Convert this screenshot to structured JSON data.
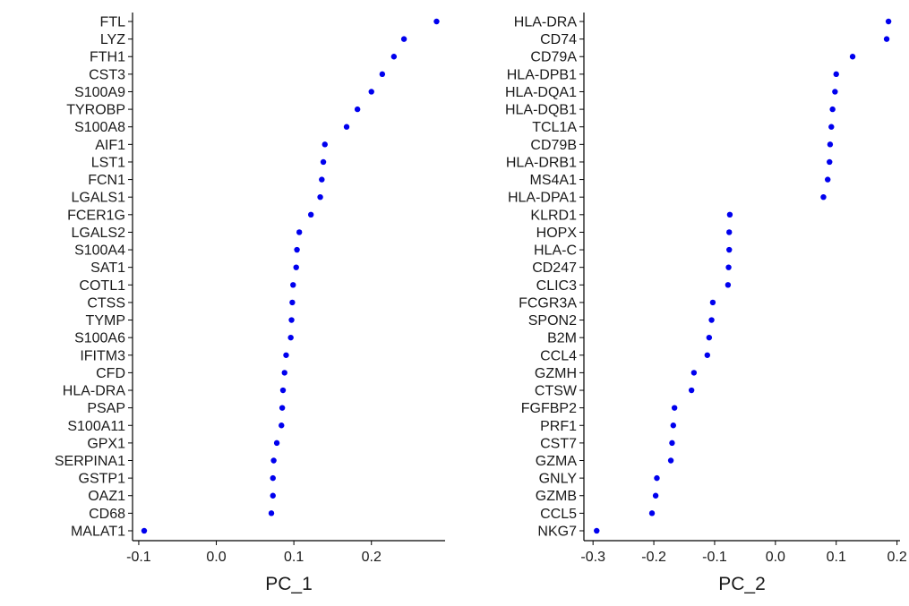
{
  "point_color": "#0000ee",
  "chart_data": [
    {
      "type": "scatter",
      "title": "",
      "xlabel": "PC_1",
      "ylabel": "",
      "xlim": [
        -0.108,
        0.295
      ],
      "xticks": [
        -0.1,
        0.0,
        0.1,
        0.2
      ],
      "xtick_labels": [
        "-0.1",
        "0.0",
        "0.1",
        "0.2"
      ],
      "genes": [
        "FTL",
        "LYZ",
        "FTH1",
        "CST3",
        "S100A9",
        "TYROBP",
        "S100A8",
        "AIF1",
        "LST1",
        "FCN1",
        "LGALS1",
        "FCER1G",
        "LGALS2",
        "S100A4",
        "SAT1",
        "COTL1",
        "CTSS",
        "TYMP",
        "S100A6",
        "IFITM3",
        "CFD",
        "HLA-DRA",
        "PSAP",
        "S100A11",
        "GPX1",
        "SERPINA1",
        "GSTP1",
        "OAZ1",
        "CD68",
        "MALAT1"
      ],
      "values": [
        0.284,
        0.242,
        0.229,
        0.214,
        0.2,
        0.182,
        0.168,
        0.14,
        0.138,
        0.136,
        0.134,
        0.122,
        0.107,
        0.104,
        0.103,
        0.099,
        0.098,
        0.097,
        0.096,
        0.09,
        0.088,
        0.086,
        0.085,
        0.084,
        0.078,
        0.074,
        0.073,
        0.073,
        0.071,
        -0.093
      ]
    },
    {
      "type": "scatter",
      "title": "",
      "xlabel": "PC_2",
      "ylabel": "",
      "xlim": [
        -0.315,
        0.205
      ],
      "xticks": [
        -0.3,
        -0.2,
        -0.1,
        0.0,
        0.1,
        0.2
      ],
      "xtick_labels": [
        "-0.3",
        "-0.2",
        "-0.1",
        "0.0",
        "0.1",
        "0.2"
      ],
      "genes": [
        "HLA-DRA",
        "CD74",
        "CD79A",
        "HLA-DPB1",
        "HLA-DQA1",
        "HLA-DQB1",
        "TCL1A",
        "CD79B",
        "HLA-DRB1",
        "MS4A1",
        "HLA-DPA1",
        "KLRD1",
        "HOPX",
        "HLA-C",
        "CD247",
        "CLIC3",
        "FCGR3A",
        "SPON2",
        "B2M",
        "CCL4",
        "GZMH",
        "CTSW",
        "FGFBP2",
        "PRF1",
        "CST7",
        "GZMA",
        "GNLY",
        "GZMB",
        "CCL5",
        "NKG7"
      ],
      "values": [
        0.186,
        0.183,
        0.127,
        0.1,
        0.098,
        0.094,
        0.092,
        0.09,
        0.089,
        0.086,
        0.079,
        -0.075,
        -0.076,
        -0.076,
        -0.077,
        -0.078,
        -0.103,
        -0.105,
        -0.109,
        -0.112,
        -0.134,
        -0.138,
        -0.166,
        -0.168,
        -0.17,
        -0.172,
        -0.195,
        -0.197,
        -0.203,
        -0.294
      ]
    }
  ]
}
